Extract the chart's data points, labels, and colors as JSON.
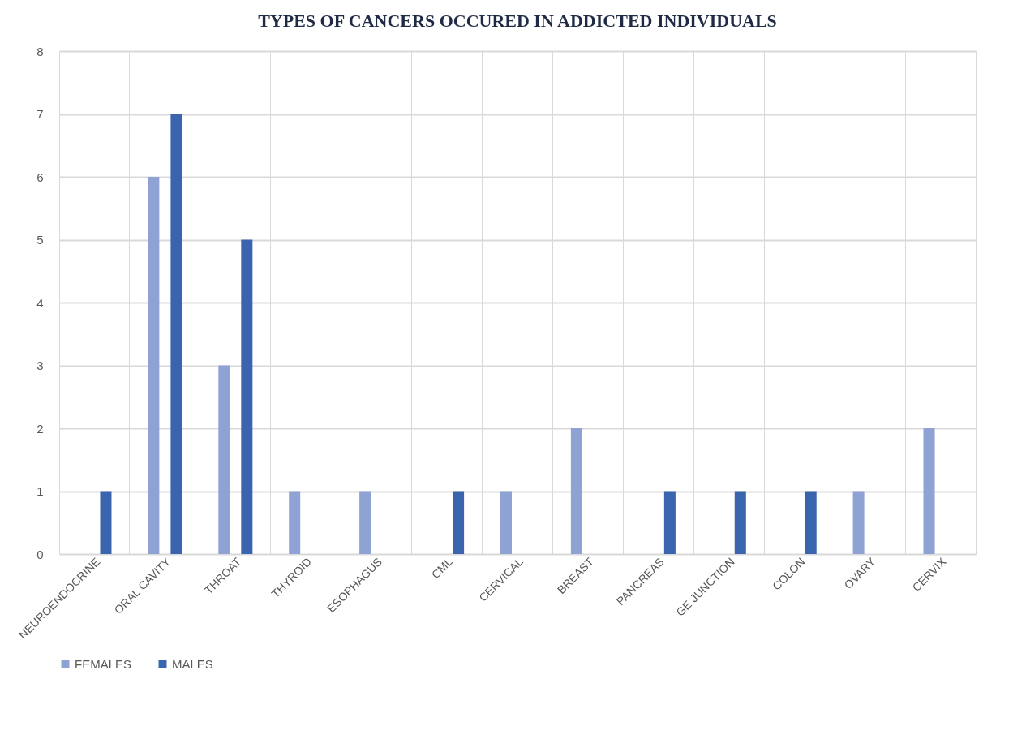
{
  "chart_data": {
    "type": "bar",
    "title": "TYPES OF CANCERS OCCURED IN ADDICTED INDIVIDUALS",
    "categories": [
      "NEUROENDOCRINE",
      "ORAL CAVITY",
      "THROAT",
      "THYROID",
      "ESOPHAGUS",
      "CML",
      "CERVICAL",
      "BREAST",
      "PANCREAS",
      "GE JUNCTION",
      "COLON",
      "OVARY",
      "CERVIX"
    ],
    "series": [
      {
        "name": "FEMALES",
        "color": "#8fa2d4",
        "values": [
          0,
          6,
          3,
          1,
          1,
          0,
          1,
          2,
          0,
          0,
          0,
          1,
          2
        ]
      },
      {
        "name": "MALES",
        "color": "#3a64ae",
        "values": [
          1,
          7,
          5,
          0,
          0,
          1,
          0,
          0,
          1,
          1,
          1,
          0,
          0
        ]
      }
    ],
    "ylim": [
      0,
      8
    ],
    "yticks": [
      0,
      1,
      2,
      3,
      4,
      5,
      6,
      7,
      8
    ],
    "grid": true,
    "legend": "bottom"
  }
}
